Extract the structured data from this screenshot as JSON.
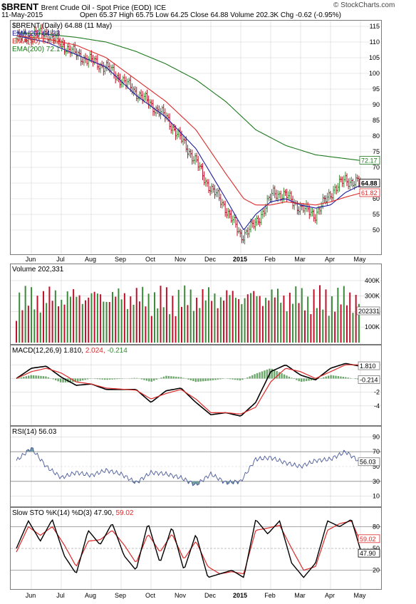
{
  "header": {
    "symbol": "$BRENT",
    "name": "Brent Crude Oil - Spot Price (EOD)",
    "exchange": "ICE",
    "date": "11-May-2015",
    "ohlc": "Open 65.37  High 65.75  Low 64.25  Close 64.88  Volume 202.3K  Chg -0.62 (-0.95%)",
    "logo": "© StockCharts.com"
  },
  "colors": {
    "up": "#3a8a3a",
    "down": "#c0102a",
    "ema20": "#1c1ca0",
    "ema50": "#dd2a2a",
    "ema200": "#1e7a1e",
    "panel_border": "#7a7a7a",
    "grid": "#d4d4d4"
  },
  "x_labels": [
    "Jun",
    "Jul",
    "Aug",
    "Sep",
    "Oct",
    "Nov",
    "Dec",
    "2015",
    "Feb",
    "Mar",
    "Apr",
    "May"
  ],
  "chart_data": [
    {
      "type": "line",
      "title": "$BRENT (Daily) 64.88 (11 May)",
      "legend": [
        "EMA(20) 64.33",
        "EMA(50) 61.82",
        "EMA(200) 72.17"
      ],
      "ylim": [
        45,
        115
      ],
      "yticks": [
        50,
        55,
        60,
        65,
        70,
        75,
        80,
        85,
        90,
        95,
        100,
        105,
        110,
        115
      ],
      "price_label": "64.88",
      "series": [
        {
          "name": "$BRENT",
          "months": [
            0.0,
            1.0,
            2.0,
            3.0,
            4.0,
            5.0,
            6.0,
            6.3,
            7.0,
            7.5,
            8.0,
            8.6,
            9.0,
            9.5,
            10.0,
            10.6,
            11.0,
            11.5
          ],
          "values": [
            111,
            113,
            106,
            102,
            94,
            86,
            72,
            66,
            57,
            48,
            52,
            62,
            61,
            57,
            55,
            63,
            66,
            65
          ]
        },
        {
          "name": "EMA(20)",
          "months": [
            0.0,
            1.0,
            2.0,
            3.0,
            4.0,
            5.0,
            6.0,
            7.0,
            7.6,
            8.0,
            8.5,
            9.0,
            9.5,
            10.0,
            10.5,
            11.0,
            11.5
          ],
          "values": [
            112,
            110,
            106,
            102,
            93,
            86,
            76,
            60,
            50,
            55,
            59,
            60,
            58,
            57,
            58,
            62,
            64.3
          ]
        },
        {
          "name": "EMA(50)",
          "months": [
            0.0,
            1.0,
            2.0,
            3.0,
            4.0,
            5.0,
            6.0,
            7.0,
            7.6,
            8.0,
            8.5,
            9.0,
            9.5,
            10.0,
            10.5,
            11.0,
            11.5
          ],
          "values": [
            112,
            111,
            109,
            105,
            98,
            91,
            82,
            68,
            60,
            58,
            58,
            59,
            58.5,
            58,
            59,
            60.5,
            61.8
          ]
        },
        {
          "name": "EMA(200)",
          "months": [
            0.0,
            1.0,
            2.0,
            3.0,
            4.0,
            5.0,
            6.0,
            7.0,
            8.0,
            9.0,
            10.0,
            11.0,
            11.5
          ],
          "values": [
            113,
            112.5,
            111.5,
            110,
            107,
            103,
            98,
            91,
            82,
            77,
            74,
            72.8,
            72.2
          ]
        }
      ],
      "value_labels": [
        "72.17",
        "64.88",
        "61.82"
      ]
    },
    {
      "type": "bar",
      "title": "Volume 202,331",
      "ylim": [
        0,
        450000
      ],
      "yticks_labels": [
        "100K",
        "200K",
        "300K",
        "400K"
      ],
      "yticks": [
        100000,
        200000,
        300000,
        400000
      ],
      "value_label": "202331"
    },
    {
      "type": "line",
      "title": "MACD(12,26,9) 1.810, 2.024, -0.214",
      "title_parts": [
        "MACD(12,26,9)",
        "1.810,",
        "2.024,",
        "-0.214"
      ],
      "ylim": [
        -6,
        4
      ],
      "yticks": [
        -4,
        -2,
        0,
        2
      ],
      "value_labels": [
        "1.810",
        "-0.214"
      ],
      "series": [
        {
          "name": "MACD",
          "months": [
            0.0,
            0.5,
            1.0,
            1.5,
            2.0,
            2.5,
            3.0,
            4.0,
            4.5,
            5.0,
            5.5,
            6.0,
            6.5,
            7.0,
            7.5,
            8.0,
            8.5,
            9.0,
            9.5,
            10.0,
            10.5,
            11.0,
            11.5
          ],
          "values": [
            0,
            1.5,
            1.8,
            0.2,
            -1.0,
            -0.8,
            -1.6,
            -1.6,
            -3.5,
            -1.8,
            -1.4,
            -3.5,
            -5.3,
            -5.0,
            -5.5,
            -3.5,
            1.0,
            2.0,
            0.5,
            -0.2,
            1.5,
            2.2,
            1.8
          ]
        },
        {
          "name": "Signal",
          "months": [
            0.0,
            0.5,
            1.0,
            1.5,
            2.0,
            2.5,
            3.0,
            4.0,
            4.5,
            5.0,
            5.5,
            6.0,
            6.5,
            7.0,
            7.5,
            8.0,
            8.5,
            9.0,
            9.5,
            10.0,
            10.5,
            11.0,
            11.5
          ],
          "values": [
            0,
            1.0,
            1.5,
            0.8,
            -0.5,
            -0.8,
            -1.4,
            -1.7,
            -3.0,
            -2.2,
            -1.6,
            -3.0,
            -5.0,
            -5.0,
            -5.2,
            -4.2,
            -0.5,
            1.5,
            1.0,
            0.0,
            1.0,
            2.0,
            2.0
          ]
        },
        {
          "name": "Histogram",
          "months": [
            0.0,
            0.5,
            1.0,
            1.5,
            2.0,
            2.5,
            3.0,
            4.0,
            4.5,
            5.0,
            5.5,
            6.0,
            6.5,
            7.0,
            7.5,
            8.0,
            8.5,
            9.0,
            9.5,
            10.0,
            10.5,
            11.0,
            11.5
          ],
          "values": [
            0,
            0.5,
            0.3,
            -0.6,
            -0.5,
            0,
            -0.2,
            0.1,
            -0.5,
            0.4,
            0.2,
            -0.5,
            -0.3,
            0,
            -0.3,
            0.7,
            1.5,
            0.5,
            -0.5,
            -0.2,
            0.5,
            0.2,
            -0.2
          ]
        }
      ]
    },
    {
      "type": "line",
      "title": "RSI(14) 56.03",
      "ylim": [
        0,
        100
      ],
      "yticks": [
        10,
        30,
        50,
        70,
        90
      ],
      "value_label": "56.03",
      "series": [
        {
          "name": "RSI(14)",
          "months": [
            0.0,
            0.5,
            1.0,
            1.5,
            2.0,
            2.5,
            3.0,
            3.5,
            4.0,
            4.5,
            5.0,
            5.5,
            6.0,
            6.5,
            7.0,
            7.5,
            8.0,
            8.5,
            9.0,
            9.5,
            10.0,
            10.5,
            11.0,
            11.5
          ],
          "values": [
            58,
            75,
            50,
            35,
            42,
            38,
            45,
            40,
            28,
            42,
            40,
            35,
            25,
            40,
            28,
            30,
            60,
            62,
            55,
            50,
            58,
            60,
            70,
            56
          ]
        }
      ]
    },
    {
      "type": "line",
      "title": "Slow STO %K(14) %D(3) 47.90, 59.02",
      "title_parts": [
        "Slow STO %K(14) %D(3)",
        "47.90,",
        "59.02"
      ],
      "ylim": [
        0,
        100
      ],
      "yticks": [
        20,
        50,
        80
      ],
      "value_labels": [
        "59.02",
        "47.90"
      ],
      "series": [
        {
          "name": "%K",
          "months": [
            0.0,
            0.4,
            0.8,
            1.2,
            1.6,
            2.0,
            2.4,
            2.8,
            3.2,
            3.6,
            4.0,
            4.4,
            4.8,
            5.2,
            5.6,
            6.0,
            6.4,
            6.8,
            7.2,
            7.6,
            8.0,
            8.4,
            8.8,
            9.2,
            9.6,
            10.0,
            10.4,
            10.8,
            11.2,
            11.5
          ],
          "values": [
            50,
            88,
            60,
            90,
            40,
            15,
            75,
            55,
            85,
            40,
            20,
            85,
            30,
            80,
            20,
            70,
            10,
            15,
            20,
            10,
            90,
            70,
            88,
            30,
            10,
            30,
            88,
            80,
            90,
            48
          ]
        },
        {
          "name": "%D",
          "months": [
            0.0,
            0.4,
            0.8,
            1.2,
            1.6,
            2.0,
            2.4,
            2.8,
            3.2,
            3.6,
            4.0,
            4.4,
            4.8,
            5.2,
            5.6,
            6.0,
            6.4,
            6.8,
            7.2,
            7.6,
            8.0,
            8.4,
            8.8,
            9.2,
            9.6,
            10.0,
            10.4,
            10.8,
            11.2,
            11.5
          ],
          "values": [
            45,
            80,
            68,
            80,
            55,
            25,
            60,
            62,
            75,
            55,
            30,
            70,
            45,
            70,
            35,
            60,
            25,
            15,
            18,
            15,
            75,
            78,
            82,
            50,
            20,
            25,
            75,
            84,
            88,
            59
          ]
        }
      ]
    }
  ]
}
